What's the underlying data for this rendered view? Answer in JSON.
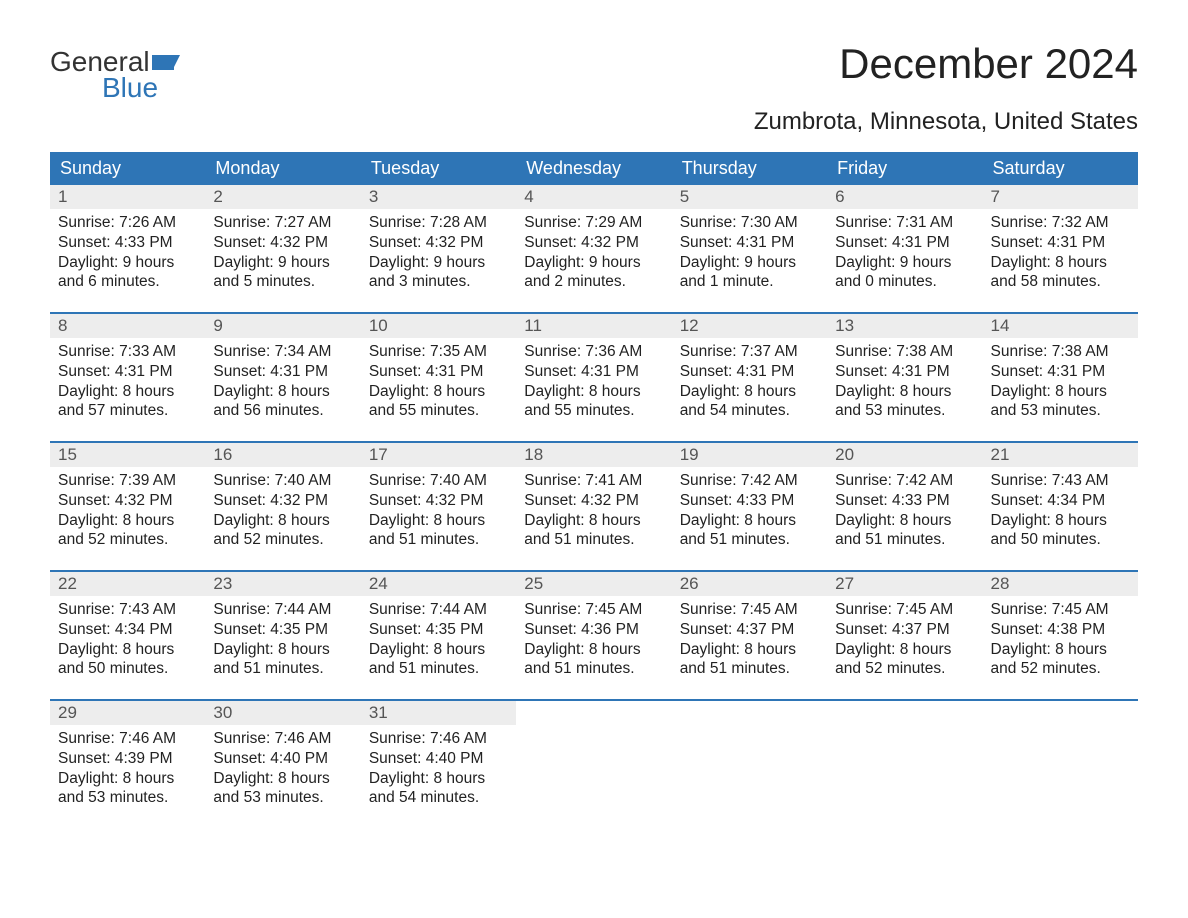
{
  "logo": {
    "word1": "General",
    "word2": "Blue",
    "flag_color": "#2e75b6"
  },
  "title": "December 2024",
  "location": "Zumbrota, Minnesota, United States",
  "colors": {
    "header_bg": "#2e75b6",
    "header_text": "#ffffff",
    "daynum_bg": "#ededed",
    "daynum_text": "#555555",
    "body_text": "#222222",
    "rule": "#2e75b6"
  },
  "day_headers": [
    "Sunday",
    "Monday",
    "Tuesday",
    "Wednesday",
    "Thursday",
    "Friday",
    "Saturday"
  ],
  "weeks": [
    [
      {
        "n": "1",
        "sr": "Sunrise: 7:26 AM",
        "ss": "Sunset: 4:33 PM",
        "d1": "Daylight: 9 hours",
        "d2": "and 6 minutes."
      },
      {
        "n": "2",
        "sr": "Sunrise: 7:27 AM",
        "ss": "Sunset: 4:32 PM",
        "d1": "Daylight: 9 hours",
        "d2": "and 5 minutes."
      },
      {
        "n": "3",
        "sr": "Sunrise: 7:28 AM",
        "ss": "Sunset: 4:32 PM",
        "d1": "Daylight: 9 hours",
        "d2": "and 3 minutes."
      },
      {
        "n": "4",
        "sr": "Sunrise: 7:29 AM",
        "ss": "Sunset: 4:32 PM",
        "d1": "Daylight: 9 hours",
        "d2": "and 2 minutes."
      },
      {
        "n": "5",
        "sr": "Sunrise: 7:30 AM",
        "ss": "Sunset: 4:31 PM",
        "d1": "Daylight: 9 hours",
        "d2": "and 1 minute."
      },
      {
        "n": "6",
        "sr": "Sunrise: 7:31 AM",
        "ss": "Sunset: 4:31 PM",
        "d1": "Daylight: 9 hours",
        "d2": "and 0 minutes."
      },
      {
        "n": "7",
        "sr": "Sunrise: 7:32 AM",
        "ss": "Sunset: 4:31 PM",
        "d1": "Daylight: 8 hours",
        "d2": "and 58 minutes."
      }
    ],
    [
      {
        "n": "8",
        "sr": "Sunrise: 7:33 AM",
        "ss": "Sunset: 4:31 PM",
        "d1": "Daylight: 8 hours",
        "d2": "and 57 minutes."
      },
      {
        "n": "9",
        "sr": "Sunrise: 7:34 AM",
        "ss": "Sunset: 4:31 PM",
        "d1": "Daylight: 8 hours",
        "d2": "and 56 minutes."
      },
      {
        "n": "10",
        "sr": "Sunrise: 7:35 AM",
        "ss": "Sunset: 4:31 PM",
        "d1": "Daylight: 8 hours",
        "d2": "and 55 minutes."
      },
      {
        "n": "11",
        "sr": "Sunrise: 7:36 AM",
        "ss": "Sunset: 4:31 PM",
        "d1": "Daylight: 8 hours",
        "d2": "and 55 minutes."
      },
      {
        "n": "12",
        "sr": "Sunrise: 7:37 AM",
        "ss": "Sunset: 4:31 PM",
        "d1": "Daylight: 8 hours",
        "d2": "and 54 minutes."
      },
      {
        "n": "13",
        "sr": "Sunrise: 7:38 AM",
        "ss": "Sunset: 4:31 PM",
        "d1": "Daylight: 8 hours",
        "d2": "and 53 minutes."
      },
      {
        "n": "14",
        "sr": "Sunrise: 7:38 AM",
        "ss": "Sunset: 4:31 PM",
        "d1": "Daylight: 8 hours",
        "d2": "and 53 minutes."
      }
    ],
    [
      {
        "n": "15",
        "sr": "Sunrise: 7:39 AM",
        "ss": "Sunset: 4:32 PM",
        "d1": "Daylight: 8 hours",
        "d2": "and 52 minutes."
      },
      {
        "n": "16",
        "sr": "Sunrise: 7:40 AM",
        "ss": "Sunset: 4:32 PM",
        "d1": "Daylight: 8 hours",
        "d2": "and 52 minutes."
      },
      {
        "n": "17",
        "sr": "Sunrise: 7:40 AM",
        "ss": "Sunset: 4:32 PM",
        "d1": "Daylight: 8 hours",
        "d2": "and 51 minutes."
      },
      {
        "n": "18",
        "sr": "Sunrise: 7:41 AM",
        "ss": "Sunset: 4:32 PM",
        "d1": "Daylight: 8 hours",
        "d2": "and 51 minutes."
      },
      {
        "n": "19",
        "sr": "Sunrise: 7:42 AM",
        "ss": "Sunset: 4:33 PM",
        "d1": "Daylight: 8 hours",
        "d2": "and 51 minutes."
      },
      {
        "n": "20",
        "sr": "Sunrise: 7:42 AM",
        "ss": "Sunset: 4:33 PM",
        "d1": "Daylight: 8 hours",
        "d2": "and 51 minutes."
      },
      {
        "n": "21",
        "sr": "Sunrise: 7:43 AM",
        "ss": "Sunset: 4:34 PM",
        "d1": "Daylight: 8 hours",
        "d2": "and 50 minutes."
      }
    ],
    [
      {
        "n": "22",
        "sr": "Sunrise: 7:43 AM",
        "ss": "Sunset: 4:34 PM",
        "d1": "Daylight: 8 hours",
        "d2": "and 50 minutes."
      },
      {
        "n": "23",
        "sr": "Sunrise: 7:44 AM",
        "ss": "Sunset: 4:35 PM",
        "d1": "Daylight: 8 hours",
        "d2": "and 51 minutes."
      },
      {
        "n": "24",
        "sr": "Sunrise: 7:44 AM",
        "ss": "Sunset: 4:35 PM",
        "d1": "Daylight: 8 hours",
        "d2": "and 51 minutes."
      },
      {
        "n": "25",
        "sr": "Sunrise: 7:45 AM",
        "ss": "Sunset: 4:36 PM",
        "d1": "Daylight: 8 hours",
        "d2": "and 51 minutes."
      },
      {
        "n": "26",
        "sr": "Sunrise: 7:45 AM",
        "ss": "Sunset: 4:37 PM",
        "d1": "Daylight: 8 hours",
        "d2": "and 51 minutes."
      },
      {
        "n": "27",
        "sr": "Sunrise: 7:45 AM",
        "ss": "Sunset: 4:37 PM",
        "d1": "Daylight: 8 hours",
        "d2": "and 52 minutes."
      },
      {
        "n": "28",
        "sr": "Sunrise: 7:45 AM",
        "ss": "Sunset: 4:38 PM",
        "d1": "Daylight: 8 hours",
        "d2": "and 52 minutes."
      }
    ],
    [
      {
        "n": "29",
        "sr": "Sunrise: 7:46 AM",
        "ss": "Sunset: 4:39 PM",
        "d1": "Daylight: 8 hours",
        "d2": "and 53 minutes."
      },
      {
        "n": "30",
        "sr": "Sunrise: 7:46 AM",
        "ss": "Sunset: 4:40 PM",
        "d1": "Daylight: 8 hours",
        "d2": "and 53 minutes."
      },
      {
        "n": "31",
        "sr": "Sunrise: 7:46 AM",
        "ss": "Sunset: 4:40 PM",
        "d1": "Daylight: 8 hours",
        "d2": "and 54 minutes."
      },
      null,
      null,
      null,
      null
    ]
  ]
}
